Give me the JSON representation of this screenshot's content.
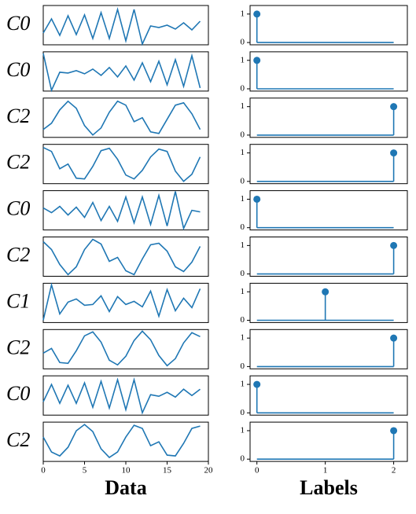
{
  "chart_data": [
    {
      "type": "line",
      "ylabel": "C0",
      "x": [
        0,
        1,
        2,
        3,
        4,
        5,
        6,
        7,
        8,
        9,
        10,
        11,
        12,
        13,
        14,
        15,
        16,
        17,
        18,
        19
      ],
      "values": [
        0.3,
        0.66,
        0.24,
        0.74,
        0.26,
        0.76,
        0.16,
        0.82,
        0.16,
        0.9,
        0.1,
        0.9,
        0.02,
        0.48,
        0.44,
        0.5,
        0.4,
        0.56,
        0.38,
        0.6
      ],
      "color": "#1f77b4",
      "xlim": [
        0,
        20
      ],
      "ylim": [
        0,
        1
      ]
    },
    {
      "type": "stem",
      "x": [
        0,
        1,
        2
      ],
      "values": [
        1,
        0,
        0
      ],
      "color": "#1f77b4",
      "xlim": [
        -0.1,
        2.2
      ],
      "ylim": [
        -0.08,
        1.3
      ],
      "yticks": [
        0,
        1
      ]
    },
    {
      "type": "line",
      "ylabel": "C0",
      "x": [
        0,
        1,
        2,
        3,
        4,
        5,
        6,
        7,
        8,
        9,
        10,
        11,
        12,
        13,
        14,
        15,
        16,
        17,
        18,
        19
      ],
      "values": [
        0.96,
        0.02,
        0.48,
        0.46,
        0.52,
        0.44,
        0.56,
        0.4,
        0.6,
        0.36,
        0.64,
        0.28,
        0.72,
        0.24,
        0.76,
        0.16,
        0.8,
        0.12,
        0.9,
        0.08
      ],
      "color": "#1f77b4",
      "xlim": [
        0,
        20
      ],
      "ylim": [
        0,
        1
      ]
    },
    {
      "type": "stem",
      "x": [
        0,
        1,
        2
      ],
      "values": [
        1,
        0,
        0
      ],
      "color": "#1f77b4",
      "xlim": [
        -0.1,
        2.2
      ],
      "ylim": [
        -0.08,
        1.3
      ],
      "yticks": [
        0,
        1
      ]
    },
    {
      "type": "line",
      "ylabel": "C2",
      "x": [
        0,
        1,
        2,
        3,
        4,
        5,
        6,
        7,
        8,
        9,
        10,
        11,
        12,
        13,
        14,
        15,
        16,
        17,
        18,
        19
      ],
      "values": [
        0.2,
        0.36,
        0.7,
        0.92,
        0.74,
        0.3,
        0.06,
        0.24,
        0.64,
        0.92,
        0.82,
        0.4,
        0.5,
        0.14,
        0.1,
        0.46,
        0.82,
        0.88,
        0.6,
        0.2
      ],
      "color": "#1f77b4",
      "xlim": [
        0,
        20
      ],
      "ylim": [
        0,
        1
      ]
    },
    {
      "type": "stem",
      "x": [
        0,
        1,
        2
      ],
      "values": [
        0,
        0,
        1
      ],
      "color": "#1f77b4",
      "xlim": [
        -0.1,
        2.2
      ],
      "ylim": [
        -0.08,
        1.3
      ],
      "yticks": [
        0,
        1
      ]
    },
    {
      "type": "line",
      "ylabel": "C2",
      "x": [
        0,
        1,
        2,
        3,
        4,
        5,
        6,
        7,
        8,
        9,
        10,
        11,
        12,
        13,
        14,
        15,
        16,
        17,
        18,
        19
      ],
      "values": [
        0.92,
        0.82,
        0.38,
        0.5,
        0.14,
        0.12,
        0.44,
        0.84,
        0.9,
        0.62,
        0.22,
        0.12,
        0.34,
        0.68,
        0.88,
        0.82,
        0.32,
        0.06,
        0.24,
        0.68
      ],
      "color": "#1f77b4",
      "xlim": [
        0,
        20
      ],
      "ylim": [
        0,
        1
      ]
    },
    {
      "type": "stem",
      "x": [
        0,
        1,
        2
      ],
      "values": [
        0,
        0,
        1
      ],
      "color": "#1f77b4",
      "xlim": [
        -0.1,
        2.2
      ],
      "ylim": [
        -0.08,
        1.3
      ],
      "yticks": [
        0,
        1
      ]
    },
    {
      "type": "line",
      "ylabel": "C0",
      "x": [
        0,
        1,
        2,
        3,
        4,
        5,
        6,
        7,
        8,
        9,
        10,
        11,
        12,
        13,
        14,
        15,
        16,
        17,
        18,
        19
      ],
      "values": [
        0.56,
        0.44,
        0.6,
        0.38,
        0.58,
        0.32,
        0.7,
        0.24,
        0.6,
        0.22,
        0.84,
        0.18,
        0.84,
        0.14,
        0.88,
        0.1,
        0.98,
        0.04,
        0.5,
        0.46
      ],
      "color": "#1f77b4",
      "xlim": [
        0,
        20
      ],
      "ylim": [
        0,
        1
      ]
    },
    {
      "type": "stem",
      "x": [
        0,
        1,
        2
      ],
      "values": [
        1,
        0,
        0
      ],
      "color": "#1f77b4",
      "xlim": [
        -0.1,
        2.2
      ],
      "ylim": [
        -0.08,
        1.3
      ],
      "yticks": [
        0,
        1
      ]
    },
    {
      "type": "line",
      "ylabel": "C2",
      "x": [
        0,
        1,
        2,
        3,
        4,
        5,
        6,
        7,
        8,
        9,
        10,
        11,
        12,
        13,
        14,
        15,
        16,
        17,
        18,
        19
      ],
      "values": [
        0.88,
        0.68,
        0.3,
        0.04,
        0.24,
        0.68,
        0.94,
        0.82,
        0.38,
        0.48,
        0.14,
        0.04,
        0.44,
        0.8,
        0.84,
        0.64,
        0.24,
        0.12,
        0.36,
        0.76
      ],
      "color": "#1f77b4",
      "xlim": [
        0,
        20
      ],
      "ylim": [
        0,
        1
      ]
    },
    {
      "type": "stem",
      "x": [
        0,
        1,
        2
      ],
      "values": [
        0,
        0,
        1
      ],
      "color": "#1f77b4",
      "xlim": [
        -0.1,
        2.2
      ],
      "ylim": [
        -0.08,
        1.3
      ],
      "yticks": [
        0,
        1
      ]
    },
    {
      "type": "line",
      "ylabel": "C1",
      "x": [
        0,
        1,
        2,
        3,
        4,
        5,
        6,
        7,
        8,
        9,
        10,
        11,
        12,
        13,
        14,
        15,
        16,
        17,
        18,
        19
      ],
      "values": [
        0.06,
        0.96,
        0.22,
        0.52,
        0.6,
        0.44,
        0.46,
        0.68,
        0.28,
        0.66,
        0.46,
        0.54,
        0.4,
        0.8,
        0.16,
        0.84,
        0.3,
        0.62,
        0.38,
        0.86
      ],
      "color": "#1f77b4",
      "xlim": [
        0,
        20
      ],
      "ylim": [
        0,
        1
      ]
    },
    {
      "type": "stem",
      "x": [
        0,
        1,
        2
      ],
      "values": [
        0,
        1,
        0
      ],
      "color": "#1f77b4",
      "xlim": [
        -0.1,
        2.2
      ],
      "ylim": [
        -0.08,
        1.3
      ],
      "yticks": [
        0,
        1
      ]
    },
    {
      "type": "line",
      "ylabel": "C2",
      "x": [
        0,
        1,
        2,
        3,
        4,
        5,
        6,
        7,
        8,
        9,
        10,
        11,
        12,
        13,
        14,
        15,
        16,
        17,
        18,
        19
      ],
      "values": [
        0.4,
        0.52,
        0.16,
        0.14,
        0.46,
        0.84,
        0.94,
        0.68,
        0.22,
        0.1,
        0.32,
        0.72,
        0.96,
        0.74,
        0.34,
        0.08,
        0.26,
        0.66,
        0.92,
        0.82
      ],
      "color": "#1f77b4",
      "xlim": [
        0,
        20
      ],
      "ylim": [
        0,
        1
      ]
    },
    {
      "type": "stem",
      "x": [
        0,
        1,
        2
      ],
      "values": [
        0,
        0,
        1
      ],
      "color": "#1f77b4",
      "xlim": [
        -0.1,
        2.2
      ],
      "ylim": [
        -0.08,
        1.3
      ],
      "yticks": [
        0,
        1
      ]
    },
    {
      "type": "line",
      "ylabel": "C0",
      "x": [
        0,
        1,
        2,
        3,
        4,
        5,
        6,
        7,
        8,
        9,
        10,
        11,
        12,
        13,
        14,
        15,
        16,
        17,
        18,
        19
      ],
      "values": [
        0.34,
        0.78,
        0.3,
        0.76,
        0.3,
        0.82,
        0.2,
        0.86,
        0.18,
        0.9,
        0.14,
        0.9,
        0.06,
        0.52,
        0.48,
        0.58,
        0.46,
        0.66,
        0.5,
        0.66
      ],
      "color": "#1f77b4",
      "xlim": [
        0,
        20
      ],
      "ylim": [
        0,
        1
      ]
    },
    {
      "type": "stem",
      "x": [
        0,
        1,
        2
      ],
      "values": [
        1,
        0,
        0
      ],
      "color": "#1f77b4",
      "xlim": [
        -0.1,
        2.2
      ],
      "ylim": [
        -0.08,
        1.3
      ],
      "yticks": [
        0,
        1
      ]
    },
    {
      "type": "line",
      "ylabel": "C2",
      "x": [
        0,
        1,
        2,
        3,
        4,
        5,
        6,
        7,
        8,
        9,
        10,
        11,
        12,
        13,
        14,
        15,
        16,
        17,
        18,
        19
      ],
      "values": [
        0.62,
        0.24,
        0.14,
        0.36,
        0.78,
        0.94,
        0.76,
        0.32,
        0.1,
        0.24,
        0.62,
        0.92,
        0.84,
        0.4,
        0.5,
        0.16,
        0.14,
        0.46,
        0.84,
        0.9
      ],
      "color": "#1f77b4",
      "xlim": [
        0,
        20
      ],
      "ylim": [
        0,
        1
      ],
      "xticks": [
        0,
        5,
        10,
        15,
        20
      ],
      "xlabel": "Data"
    },
    {
      "type": "stem",
      "x": [
        0,
        1,
        2
      ],
      "values": [
        0,
        0,
        1
      ],
      "color": "#1f77b4",
      "xlim": [
        -0.1,
        2.2
      ],
      "ylim": [
        -0.08,
        1.3
      ],
      "yticks": [
        0,
        1
      ],
      "xticks": [
        0,
        1,
        2
      ],
      "xlabel": "Labels"
    }
  ]
}
